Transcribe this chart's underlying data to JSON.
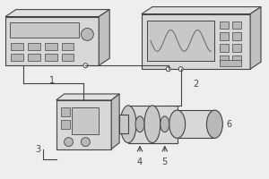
{
  "bg_color": "#eeeeee",
  "line_color": "#444444",
  "fill_light": "#d8d8d8",
  "fill_mid": "#c8c8c8",
  "fill_dark": "#b8b8b8",
  "fill_side": "#c0c0c0",
  "fill_top": "#e0e0e0",
  "screen_fill": "#d0d0d0",
  "label1": "1",
  "label2": "2",
  "label3": "3",
  "label4": "4",
  "label5": "5",
  "label6": "6",
  "label_fontsize": 7,
  "xlim": [
    0,
    300
  ],
  "ylim": [
    0,
    200
  ]
}
